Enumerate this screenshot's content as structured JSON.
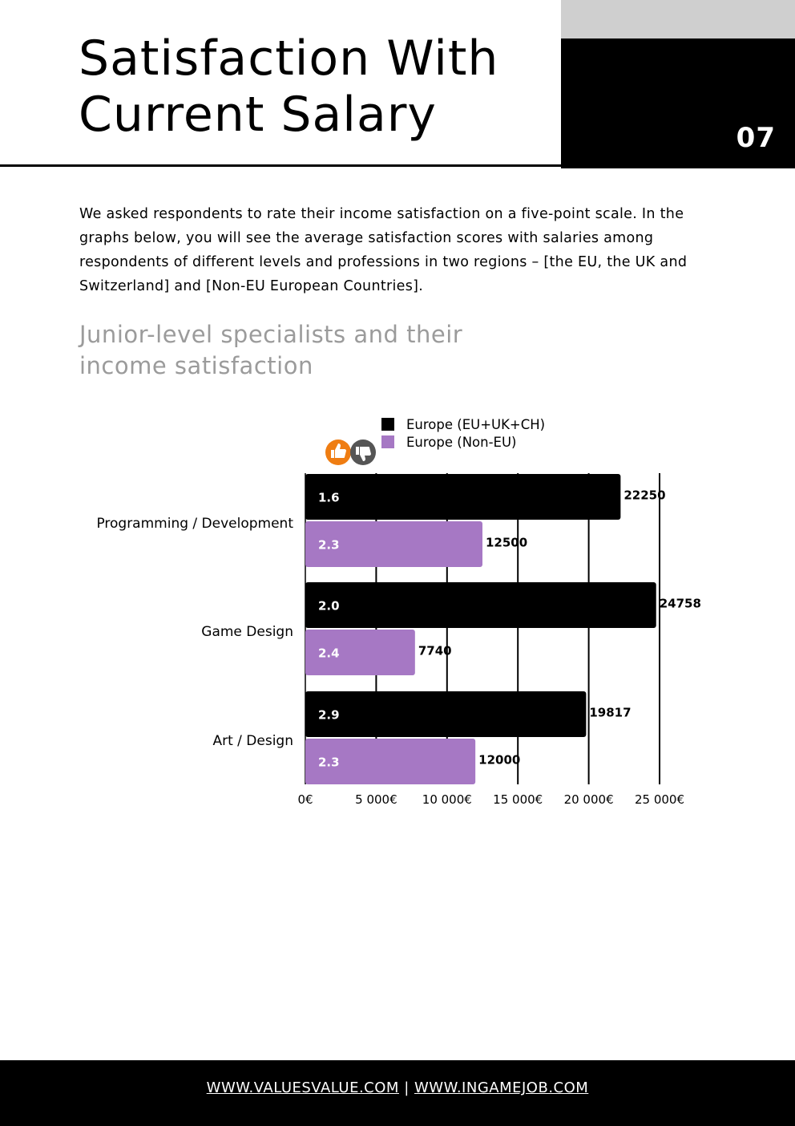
{
  "header": {
    "title_line1": "Satisfaction With",
    "title_line2": "Current Salary",
    "page_number": "07"
  },
  "intro": "We asked respondents to rate their income satisfaction on a five-point scale. In the graphs below, you will see the average satisfaction scores with salaries among respondents of different levels and professions in two regions – [the EU, the UK and Switzerland] and [Non-EU European Countries].",
  "subtitle_line1": "Junior-level specialists and their",
  "subtitle_line2": "income satisfaction",
  "icons": {
    "like": "thumbs-up-icon",
    "dislike": "thumbs-down-icon"
  },
  "colors": {
    "eu": "#000000",
    "non_eu": "#a678c4",
    "like": "#ef7d12",
    "dislike": "#555555"
  },
  "chart_data": {
    "type": "bar",
    "orientation": "horizontal",
    "categories": [
      "Programming / Development",
      "Game Design",
      "Art / Design"
    ],
    "series": [
      {
        "name": "Europe (EU+UK+CH)",
        "color": "#000000",
        "values": [
          22250,
          24758,
          19817
        ],
        "satisfaction": [
          "1.6",
          "2.0",
          "2.9"
        ]
      },
      {
        "name": "Europe (Non-EU)",
        "color": "#a678c4",
        "values": [
          12500,
          7740,
          12000
        ],
        "satisfaction": [
          "2.3",
          "2.4",
          "2.3"
        ]
      }
    ],
    "xlim": [
      0,
      25000
    ],
    "ticks": [
      0,
      5000,
      10000,
      15000,
      20000,
      25000
    ],
    "tick_labels": [
      "0€",
      "5 000€",
      "10 000€",
      "15 000€",
      "20 000€",
      "25 000€"
    ],
    "grid": true,
    "legend": "top"
  },
  "footer": {
    "link1": "WWW.VALUESVALUE.COM",
    "separator": "|",
    "link2": "WWW.INGAMEJOB.COM"
  }
}
